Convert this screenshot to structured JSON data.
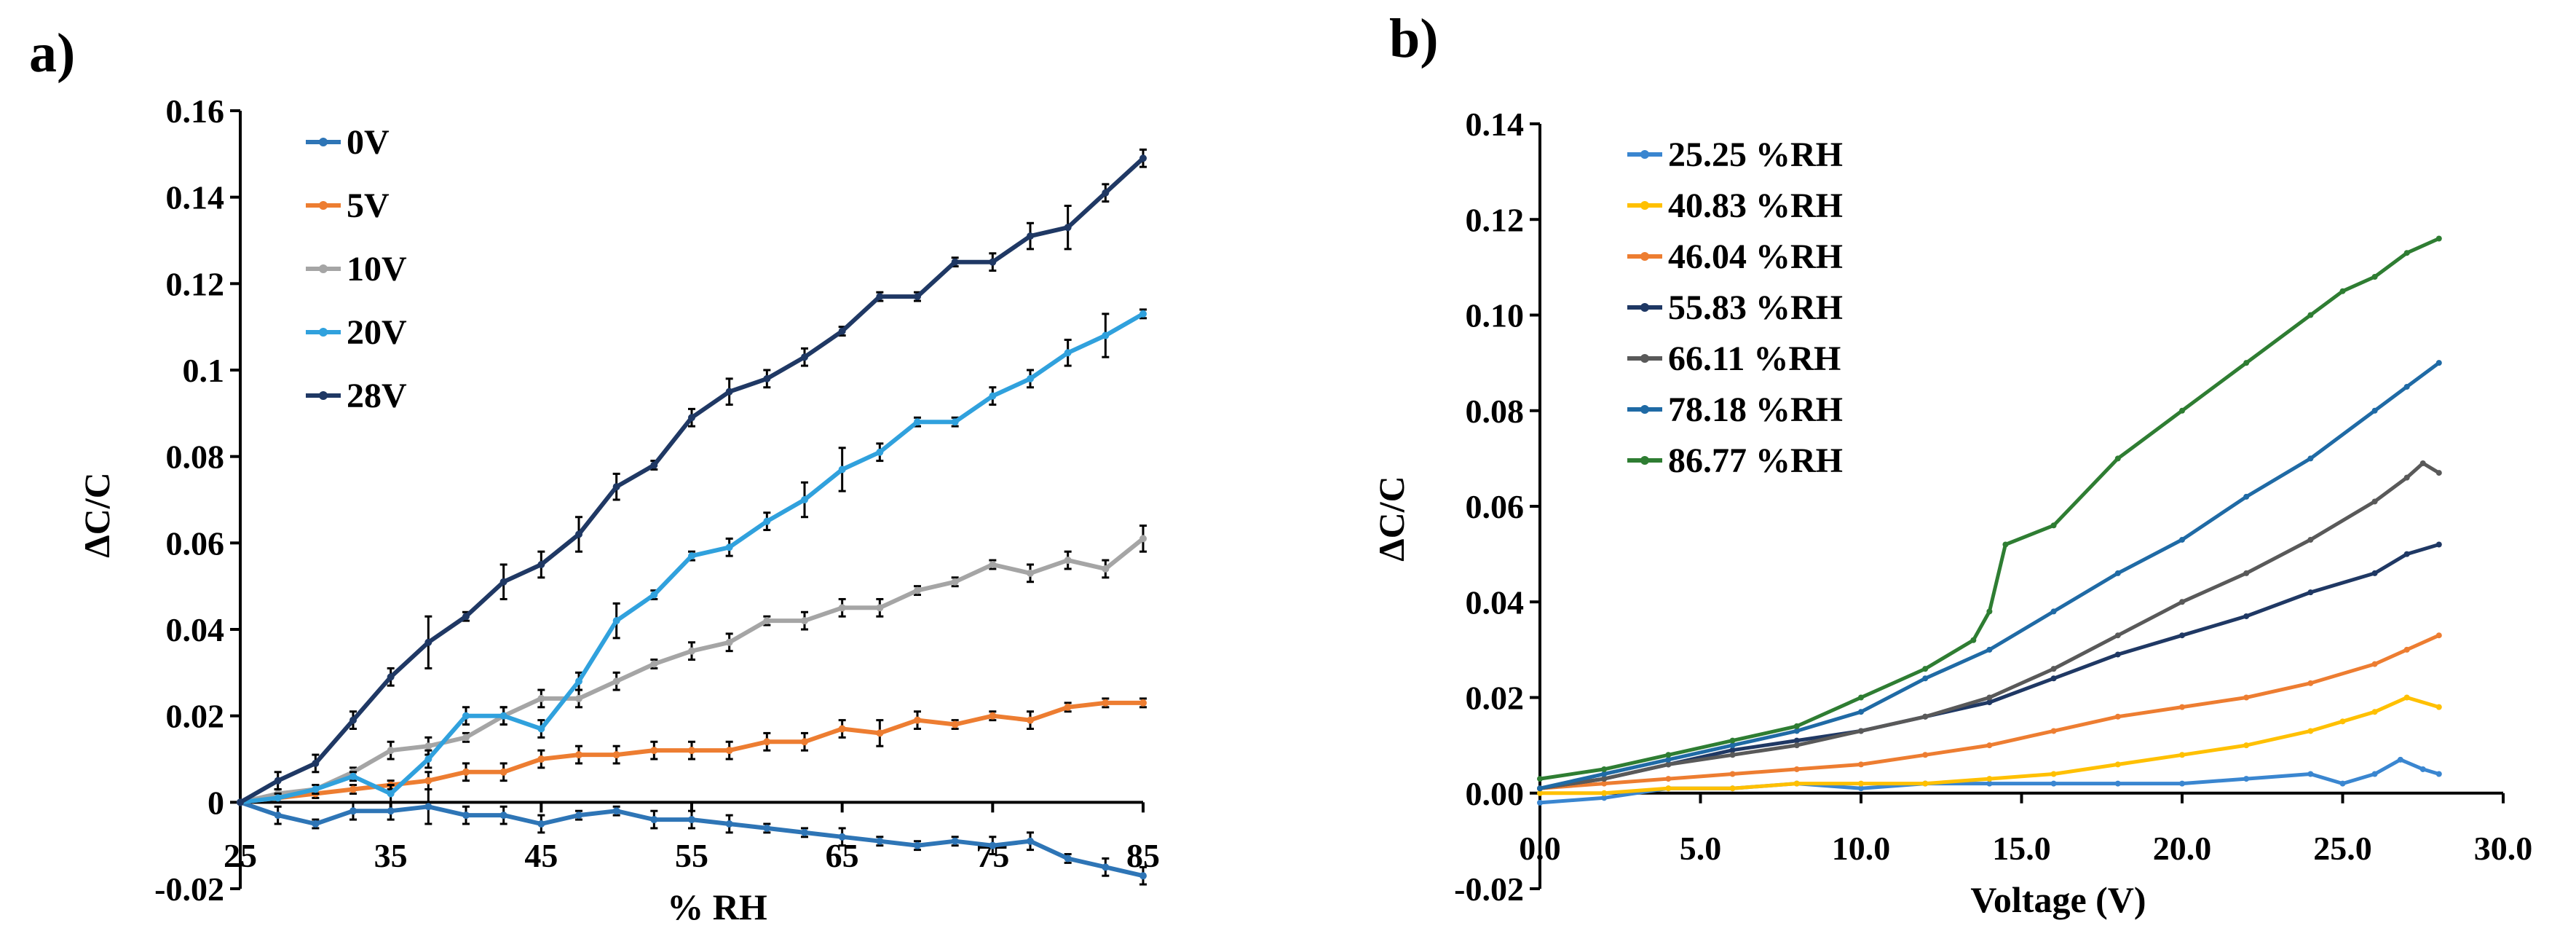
{
  "figure": {
    "panel_a_label": "a)",
    "panel_b_label": "b)"
  },
  "chart_data": [
    {
      "type": "line",
      "panel": "a)",
      "xlabel": "% RH",
      "ylabel": "ΔC/C",
      "xlim": [
        25,
        85
      ],
      "ylim": [
        -0.02,
        0.16
      ],
      "x_ticks": [
        "25",
        "35",
        "45",
        "55",
        "65",
        "75",
        "85"
      ],
      "y_ticks": [
        "-0.02",
        "0",
        "0.02",
        "0.04",
        "0.06",
        "0.08",
        "0.1",
        "0.12",
        "0.14",
        "0.16"
      ],
      "grid": false,
      "legend_position": "top-left",
      "error_bars": true,
      "x": [
        25,
        27.5,
        30,
        32.5,
        35,
        37.5,
        40,
        42.5,
        45,
        47.5,
        50,
        52.5,
        55,
        57.5,
        60,
        62.5,
        65,
        67.5,
        70,
        72.5,
        75,
        77.5,
        80,
        82.5,
        85
      ],
      "series": [
        {
          "name": "0V",
          "color": "#2e75b6",
          "values": [
            0,
            -0.003,
            -0.005,
            -0.002,
            -0.002,
            -0.001,
            -0.003,
            -0.003,
            -0.005,
            -0.003,
            -0.002,
            -0.004,
            -0.004,
            -0.005,
            -0.006,
            -0.007,
            -0.008,
            -0.009,
            -0.01,
            -0.009,
            -0.01,
            -0.009,
            -0.013,
            -0.015,
            -0.017
          ],
          "errors": [
            0,
            0.002,
            0.001,
            0.002,
            0.002,
            0.004,
            0.002,
            0.002,
            0.002,
            0.001,
            0.001,
            0.002,
            0.002,
            0.002,
            0.001,
            0.001,
            0.002,
            0.001,
            0.001,
            0.001,
            0.002,
            0.002,
            0.001,
            0.002,
            0.002
          ]
        },
        {
          "name": "5V",
          "color": "#ed7d31",
          "values": [
            0,
            0.001,
            0.002,
            0.003,
            0.004,
            0.005,
            0.007,
            0.007,
            0.01,
            0.011,
            0.011,
            0.012,
            0.012,
            0.012,
            0.014,
            0.014,
            0.017,
            0.016,
            0.019,
            0.018,
            0.02,
            0.019,
            0.022,
            0.023,
            0.023
          ],
          "errors": [
            0,
            0.001,
            0.001,
            0.001,
            0.001,
            0.002,
            0.002,
            0.002,
            0.002,
            0.002,
            0.002,
            0.002,
            0.002,
            0.002,
            0.002,
            0.002,
            0.002,
            0.003,
            0.002,
            0.001,
            0.001,
            0.002,
            0.001,
            0.001,
            0.001
          ]
        },
        {
          "name": "10V",
          "color": "#a5a5a5",
          "values": [
            0,
            0.002,
            0.003,
            0.007,
            0.012,
            0.013,
            0.015,
            0.02,
            0.024,
            0.024,
            0.028,
            0.032,
            0.035,
            0.037,
            0.042,
            0.042,
            0.045,
            0.045,
            0.049,
            0.051,
            0.055,
            0.053,
            0.056,
            0.054,
            0.061
          ],
          "errors": [
            0,
            0.001,
            0.001,
            0.001,
            0.002,
            0.002,
            0.001,
            0.002,
            0.002,
            0.002,
            0.002,
            0.001,
            0.002,
            0.002,
            0.001,
            0.002,
            0.002,
            0.002,
            0.001,
            0.001,
            0.001,
            0.002,
            0.002,
            0.002,
            0.003
          ]
        },
        {
          "name": "20V",
          "color": "#30a1dd",
          "values": [
            0,
            0.001,
            0.003,
            0.006,
            0.002,
            0.01,
            0.02,
            0.02,
            0.017,
            0.028,
            0.042,
            0.048,
            0.057,
            0.059,
            0.065,
            0.07,
            0.077,
            0.081,
            0.088,
            0.088,
            0.094,
            0.098,
            0.104,
            0.108,
            0.113
          ],
          "errors": [
            0,
            0.001,
            0.001,
            0.001,
            0.002,
            0.002,
            0.002,
            0.002,
            0.002,
            0.002,
            0.004,
            0.001,
            0.001,
            0.002,
            0.002,
            0.004,
            0.005,
            0.002,
            0.001,
            0.001,
            0.002,
            0.002,
            0.003,
            0.005,
            0.001
          ]
        },
        {
          "name": "28V",
          "color": "#1f3864",
          "values": [
            0,
            0.005,
            0.009,
            0.019,
            0.029,
            0.037,
            0.043,
            0.051,
            0.055,
            0.062,
            0.073,
            0.078,
            0.089,
            0.095,
            0.098,
            0.103,
            0.109,
            0.117,
            0.117,
            0.125,
            0.125,
            0.131,
            0.133,
            0.141,
            0.149
          ],
          "errors": [
            0,
            0.002,
            0.002,
            0.002,
            0.002,
            0.006,
            0.001,
            0.004,
            0.003,
            0.004,
            0.003,
            0.001,
            0.002,
            0.003,
            0.002,
            0.002,
            0.001,
            0.001,
            0.001,
            0.001,
            0.002,
            0.003,
            0.005,
            0.002,
            0.002
          ]
        }
      ]
    },
    {
      "type": "line",
      "panel": "b)",
      "xlabel": "Voltage (V)",
      "ylabel": "ΔC/C",
      "xlim": [
        0,
        30
      ],
      "ylim": [
        -0.02,
        0.14
      ],
      "x_ticks": [
        "0.0",
        "5.0",
        "10.0",
        "15.0",
        "20.0",
        "25.0",
        "30.0"
      ],
      "y_ticks": [
        "-0.02",
        "0.00",
        "0.02",
        "0.04",
        "0.06",
        "0.08",
        "0.10",
        "0.12",
        "0.14"
      ],
      "grid": false,
      "legend_position": "top-left",
      "series": [
        {
          "name": "25.25 %RH",
          "color": "#3a86d0",
          "points": [
            [
              0,
              -0.002
            ],
            [
              2,
              -0.001
            ],
            [
              4,
              0.001
            ],
            [
              6,
              0.001
            ],
            [
              8,
              0.002
            ],
            [
              10,
              0.001
            ],
            [
              12,
              0.002
            ],
            [
              14,
              0.002
            ],
            [
              16,
              0.002
            ],
            [
              18,
              0.002
            ],
            [
              20,
              0.002
            ],
            [
              22,
              0.003
            ],
            [
              24,
              0.004
            ],
            [
              25,
              0.002
            ],
            [
              26,
              0.004
            ],
            [
              26.8,
              0.007
            ],
            [
              27.5,
              0.005
            ],
            [
              28,
              0.004
            ]
          ]
        },
        {
          "name": "40.83 %RH",
          "color": "#ffc000",
          "points": [
            [
              0,
              0
            ],
            [
              2,
              0
            ],
            [
              4,
              0.001
            ],
            [
              6,
              0.001
            ],
            [
              8,
              0.002
            ],
            [
              10,
              0.002
            ],
            [
              12,
              0.002
            ],
            [
              14,
              0.003
            ],
            [
              16,
              0.004
            ],
            [
              18,
              0.006
            ],
            [
              20,
              0.008
            ],
            [
              22,
              0.01
            ],
            [
              24,
              0.013
            ],
            [
              25,
              0.015
            ],
            [
              26,
              0.017
            ],
            [
              27,
              0.02
            ],
            [
              28,
              0.018
            ]
          ]
        },
        {
          "name": "46.04 %RH",
          "color": "#ed7d31",
          "points": [
            [
              0,
              0.001
            ],
            [
              2,
              0.002
            ],
            [
              4,
              0.003
            ],
            [
              6,
              0.004
            ],
            [
              8,
              0.005
            ],
            [
              10,
              0.006
            ],
            [
              12,
              0.008
            ],
            [
              14,
              0.01
            ],
            [
              16,
              0.013
            ],
            [
              18,
              0.016
            ],
            [
              20,
              0.018
            ],
            [
              22,
              0.02
            ],
            [
              24,
              0.023
            ],
            [
              26,
              0.027
            ],
            [
              27,
              0.03
            ],
            [
              28,
              0.033
            ]
          ]
        },
        {
          "name": "55.83 %RH",
          "color": "#1f3864",
          "points": [
            [
              0,
              0.001
            ],
            [
              2,
              0.003
            ],
            [
              4,
              0.006
            ],
            [
              6,
              0.009
            ],
            [
              8,
              0.011
            ],
            [
              10,
              0.013
            ],
            [
              12,
              0.016
            ],
            [
              14,
              0.019
            ],
            [
              16,
              0.024
            ],
            [
              18,
              0.029
            ],
            [
              20,
              0.033
            ],
            [
              22,
              0.037
            ],
            [
              24,
              0.042
            ],
            [
              26,
              0.046
            ],
            [
              27,
              0.05
            ],
            [
              28,
              0.052
            ]
          ]
        },
        {
          "name": "66.11 %RH",
          "color": "#595959",
          "points": [
            [
              0,
              0.001
            ],
            [
              2,
              0.003
            ],
            [
              4,
              0.006
            ],
            [
              6,
              0.008
            ],
            [
              8,
              0.01
            ],
            [
              10,
              0.013
            ],
            [
              12,
              0.016
            ],
            [
              14,
              0.02
            ],
            [
              16,
              0.026
            ],
            [
              18,
              0.033
            ],
            [
              20,
              0.04
            ],
            [
              22,
              0.046
            ],
            [
              24,
              0.053
            ],
            [
              26,
              0.061
            ],
            [
              27,
              0.066
            ],
            [
              27.5,
              0.069
            ],
            [
              28,
              0.067
            ]
          ]
        },
        {
          "name": "78.18 %RH",
          "color": "#1f6aa5",
          "points": [
            [
              0,
              0.001
            ],
            [
              2,
              0.004
            ],
            [
              4,
              0.007
            ],
            [
              6,
              0.01
            ],
            [
              8,
              0.013
            ],
            [
              10,
              0.017
            ],
            [
              12,
              0.024
            ],
            [
              14,
              0.03
            ],
            [
              16,
              0.038
            ],
            [
              18,
              0.046
            ],
            [
              20,
              0.053
            ],
            [
              22,
              0.062
            ],
            [
              24,
              0.07
            ],
            [
              26,
              0.08
            ],
            [
              27,
              0.085
            ],
            [
              28,
              0.09
            ]
          ]
        },
        {
          "name": "86.77 %RH",
          "color": "#2e7d32",
          "points": [
            [
              0,
              0.003
            ],
            [
              2,
              0.005
            ],
            [
              4,
              0.008
            ],
            [
              6,
              0.011
            ],
            [
              8,
              0.014
            ],
            [
              10,
              0.02
            ],
            [
              12,
              0.026
            ],
            [
              13.5,
              0.032
            ],
            [
              14,
              0.038
            ],
            [
              14.5,
              0.052
            ],
            [
              16,
              0.056
            ],
            [
              18,
              0.07
            ],
            [
              20,
              0.08
            ],
            [
              22,
              0.09
            ],
            [
              24,
              0.1
            ],
            [
              25,
              0.105
            ],
            [
              26,
              0.108
            ],
            [
              27,
              0.113
            ],
            [
              28,
              0.116
            ]
          ]
        }
      ]
    }
  ]
}
